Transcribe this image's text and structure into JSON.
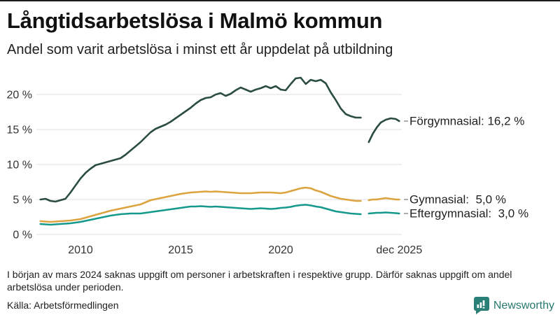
{
  "header": {
    "title": "Långtidsarbetslösa i Malmö kommun",
    "subtitle": "Andel som varit arbetslösa i minst ett år uppdelat på utbildning"
  },
  "footer": {
    "note": "I början av mars 2024 saknas uppgift om personer i arbetskraften i respektive grupp. Därför saknas uppgift om andel arbetslösa under perioden.",
    "source": "Källa: Arbetsförmedlingen",
    "brand": "Newsworthy"
  },
  "colors": {
    "forgymnasial": "#2b4c43",
    "gymnasial": "#dba43e",
    "eftergymnasial": "#15998c",
    "gridline": "#e5e5e5",
    "axis_text": "#333333",
    "label_text": "#1f1f1f",
    "leader_dash": "#8a8a8a",
    "brand_teal": "#27796f"
  },
  "chart_data": {
    "type": "line",
    "title": "Långtidsarbetslösa i Malmö kommun",
    "subtitle": "Andel som varit arbetslösa i minst ett år uppdelat på utbildning",
    "xlabel": "",
    "ylabel": "",
    "ylim": [
      0,
      23.5
    ],
    "xlim": [
      2007.9,
      2026.1
    ],
    "grid": true,
    "legend_position": "end-of-line",
    "gap_note": "no data mars 2024 (gap in all series)",
    "y_ticks": [
      {
        "value": 0,
        "label": "0 %"
      },
      {
        "value": 5,
        "label": "5 %"
      },
      {
        "value": 10,
        "label": "10 %"
      },
      {
        "value": 15,
        "label": "15 %"
      },
      {
        "value": 20,
        "label": "20 %"
      }
    ],
    "x_ticks": [
      {
        "year": 2010,
        "label": "2010"
      },
      {
        "year": 2015,
        "label": "2015"
      },
      {
        "year": 2020,
        "label": "2020"
      },
      {
        "year": 2025.92,
        "label": "dec 2025"
      }
    ],
    "series": [
      {
        "name": "Förgymnasial",
        "end_label": "Förgymnasial: 16,2 %",
        "end_value": "16,2 %",
        "color": "#2b4c43",
        "points": [
          [
            2008.0,
            5.0
          ],
          [
            2008.25,
            5.1
          ],
          [
            2008.5,
            4.8
          ],
          [
            2008.75,
            4.7
          ],
          [
            2009.0,
            4.9
          ],
          [
            2009.25,
            5.1
          ],
          [
            2009.5,
            6.0
          ],
          [
            2009.75,
            7.0
          ],
          [
            2010.0,
            8.0
          ],
          [
            2010.25,
            8.8
          ],
          [
            2010.5,
            9.4
          ],
          [
            2010.75,
            9.9
          ],
          [
            2011.0,
            10.1
          ],
          [
            2011.25,
            10.3
          ],
          [
            2011.5,
            10.5
          ],
          [
            2011.75,
            10.7
          ],
          [
            2012.0,
            10.9
          ],
          [
            2012.25,
            11.4
          ],
          [
            2012.5,
            12.0
          ],
          [
            2012.75,
            12.6
          ],
          [
            2013.0,
            13.2
          ],
          [
            2013.25,
            13.9
          ],
          [
            2013.5,
            14.6
          ],
          [
            2013.75,
            15.1
          ],
          [
            2014.0,
            15.4
          ],
          [
            2014.25,
            15.7
          ],
          [
            2014.5,
            16.1
          ],
          [
            2014.75,
            16.6
          ],
          [
            2015.0,
            17.1
          ],
          [
            2015.25,
            17.6
          ],
          [
            2015.5,
            18.1
          ],
          [
            2015.75,
            18.7
          ],
          [
            2016.0,
            19.2
          ],
          [
            2016.25,
            19.5
          ],
          [
            2016.5,
            19.6
          ],
          [
            2016.75,
            20.0
          ],
          [
            2017.0,
            20.2
          ],
          [
            2017.25,
            19.8
          ],
          [
            2017.5,
            20.1
          ],
          [
            2017.75,
            20.6
          ],
          [
            2018.0,
            21.0
          ],
          [
            2018.25,
            20.7
          ],
          [
            2018.5,
            20.4
          ],
          [
            2018.75,
            20.7
          ],
          [
            2019.0,
            20.9
          ],
          [
            2019.25,
            21.2
          ],
          [
            2019.5,
            20.9
          ],
          [
            2019.75,
            21.2
          ],
          [
            2020.0,
            20.7
          ],
          [
            2020.25,
            20.6
          ],
          [
            2020.5,
            21.5
          ],
          [
            2020.75,
            22.3
          ],
          [
            2021.0,
            22.4
          ],
          [
            2021.25,
            21.5
          ],
          [
            2021.5,
            22.1
          ],
          [
            2021.75,
            21.9
          ],
          [
            2022.0,
            22.1
          ],
          [
            2022.25,
            21.6
          ],
          [
            2022.5,
            20.3
          ],
          [
            2022.75,
            19.2
          ],
          [
            2023.0,
            18.0
          ],
          [
            2023.25,
            17.2
          ],
          [
            2023.5,
            16.9
          ],
          [
            2023.75,
            16.7
          ],
          [
            2024.0,
            16.7
          ],
          null,
          [
            2024.4,
            13.2
          ],
          [
            2024.6,
            14.4
          ],
          [
            2024.8,
            15.3
          ],
          [
            2025.0,
            16.0
          ],
          [
            2025.25,
            16.4
          ],
          [
            2025.5,
            16.6
          ],
          [
            2025.75,
            16.5
          ],
          [
            2025.92,
            16.2
          ]
        ]
      },
      {
        "name": "Gymnasial",
        "end_label": "Gymnasial:  5,0 %",
        "end_value": "5,0 %",
        "color": "#dba43e",
        "points": [
          [
            2008.0,
            1.9
          ],
          [
            2008.25,
            1.85
          ],
          [
            2008.5,
            1.8
          ],
          [
            2008.75,
            1.85
          ],
          [
            2009.0,
            1.9
          ],
          [
            2009.25,
            1.95
          ],
          [
            2009.5,
            2.0
          ],
          [
            2009.75,
            2.1
          ],
          [
            2010.0,
            2.2
          ],
          [
            2010.25,
            2.4
          ],
          [
            2010.5,
            2.6
          ],
          [
            2010.75,
            2.8
          ],
          [
            2011.0,
            3.0
          ],
          [
            2011.25,
            3.2
          ],
          [
            2011.5,
            3.4
          ],
          [
            2011.75,
            3.55
          ],
          [
            2012.0,
            3.7
          ],
          [
            2012.25,
            3.85
          ],
          [
            2012.5,
            4.0
          ],
          [
            2012.75,
            4.15
          ],
          [
            2013.0,
            4.3
          ],
          [
            2013.25,
            4.6
          ],
          [
            2013.5,
            4.9
          ],
          [
            2013.75,
            5.05
          ],
          [
            2014.0,
            5.2
          ],
          [
            2014.25,
            5.35
          ],
          [
            2014.5,
            5.5
          ],
          [
            2014.75,
            5.65
          ],
          [
            2015.0,
            5.8
          ],
          [
            2015.25,
            5.9
          ],
          [
            2015.5,
            6.0
          ],
          [
            2015.75,
            6.05
          ],
          [
            2016.0,
            6.1
          ],
          [
            2016.25,
            6.15
          ],
          [
            2016.5,
            6.1
          ],
          [
            2016.75,
            6.15
          ],
          [
            2017.0,
            6.1
          ],
          [
            2017.25,
            6.05
          ],
          [
            2017.5,
            6.0
          ],
          [
            2017.75,
            5.95
          ],
          [
            2018.0,
            5.9
          ],
          [
            2018.25,
            5.9
          ],
          [
            2018.5,
            5.9
          ],
          [
            2018.75,
            5.95
          ],
          [
            2019.0,
            6.0
          ],
          [
            2019.25,
            6.0
          ],
          [
            2019.5,
            6.0
          ],
          [
            2019.75,
            5.95
          ],
          [
            2020.0,
            5.9
          ],
          [
            2020.25,
            6.0
          ],
          [
            2020.5,
            6.2
          ],
          [
            2020.75,
            6.4
          ],
          [
            2021.0,
            6.6
          ],
          [
            2021.25,
            6.7
          ],
          [
            2021.5,
            6.6
          ],
          [
            2021.75,
            6.3
          ],
          [
            2022.0,
            6.1
          ],
          [
            2022.25,
            5.8
          ],
          [
            2022.5,
            5.5
          ],
          [
            2022.75,
            5.3
          ],
          [
            2023.0,
            5.1
          ],
          [
            2023.25,
            5.0
          ],
          [
            2023.5,
            4.9
          ],
          [
            2023.75,
            4.8
          ],
          [
            2024.0,
            4.8
          ],
          null,
          [
            2024.4,
            4.9
          ],
          [
            2024.6,
            5.0
          ],
          [
            2024.8,
            5.0
          ],
          [
            2025.0,
            5.1
          ],
          [
            2025.25,
            5.2
          ],
          [
            2025.5,
            5.1
          ],
          [
            2025.75,
            5.0
          ],
          [
            2025.92,
            5.0
          ]
        ]
      },
      {
        "name": "Eftergymnasial",
        "end_label": "Eftergymnasial:  3,0 %",
        "end_value": "3,0 %",
        "color": "#15998c",
        "points": [
          [
            2008.0,
            1.5
          ],
          [
            2008.25,
            1.45
          ],
          [
            2008.5,
            1.4
          ],
          [
            2008.75,
            1.45
          ],
          [
            2009.0,
            1.5
          ],
          [
            2009.25,
            1.55
          ],
          [
            2009.5,
            1.6
          ],
          [
            2009.75,
            1.7
          ],
          [
            2010.0,
            1.8
          ],
          [
            2010.25,
            1.95
          ],
          [
            2010.5,
            2.1
          ],
          [
            2010.75,
            2.25
          ],
          [
            2011.0,
            2.4
          ],
          [
            2011.25,
            2.55
          ],
          [
            2011.5,
            2.7
          ],
          [
            2011.75,
            2.8
          ],
          [
            2012.0,
            2.9
          ],
          [
            2012.25,
            2.95
          ],
          [
            2012.5,
            3.0
          ],
          [
            2012.75,
            3.0
          ],
          [
            2013.0,
            3.0
          ],
          [
            2013.25,
            3.1
          ],
          [
            2013.5,
            3.2
          ],
          [
            2013.75,
            3.3
          ],
          [
            2014.0,
            3.4
          ],
          [
            2014.25,
            3.5
          ],
          [
            2014.5,
            3.6
          ],
          [
            2014.75,
            3.7
          ],
          [
            2015.0,
            3.8
          ],
          [
            2015.25,
            3.9
          ],
          [
            2015.5,
            4.0
          ],
          [
            2015.75,
            4.0
          ],
          [
            2016.0,
            4.05
          ],
          [
            2016.25,
            4.0
          ],
          [
            2016.5,
            3.95
          ],
          [
            2016.75,
            4.0
          ],
          [
            2017.0,
            3.95
          ],
          [
            2017.25,
            3.9
          ],
          [
            2017.5,
            3.85
          ],
          [
            2017.75,
            3.8
          ],
          [
            2018.0,
            3.75
          ],
          [
            2018.25,
            3.7
          ],
          [
            2018.5,
            3.65
          ],
          [
            2018.75,
            3.7
          ],
          [
            2019.0,
            3.75
          ],
          [
            2019.25,
            3.7
          ],
          [
            2019.5,
            3.65
          ],
          [
            2019.75,
            3.7
          ],
          [
            2020.0,
            3.8
          ],
          [
            2020.25,
            3.85
          ],
          [
            2020.5,
            3.95
          ],
          [
            2020.75,
            4.1
          ],
          [
            2021.0,
            4.2
          ],
          [
            2021.25,
            4.25
          ],
          [
            2021.5,
            4.15
          ],
          [
            2021.75,
            4.0
          ],
          [
            2022.0,
            3.9
          ],
          [
            2022.25,
            3.7
          ],
          [
            2022.5,
            3.5
          ],
          [
            2022.75,
            3.3
          ],
          [
            2023.0,
            3.2
          ],
          [
            2023.25,
            3.1
          ],
          [
            2023.5,
            3.0
          ],
          [
            2023.75,
            2.95
          ],
          [
            2024.0,
            2.9
          ],
          null,
          [
            2024.4,
            3.0
          ],
          [
            2024.6,
            3.05
          ],
          [
            2024.8,
            3.1
          ],
          [
            2025.0,
            3.1
          ],
          [
            2025.25,
            3.15
          ],
          [
            2025.5,
            3.1
          ],
          [
            2025.75,
            3.05
          ],
          [
            2025.92,
            3.0
          ]
        ]
      }
    ]
  }
}
